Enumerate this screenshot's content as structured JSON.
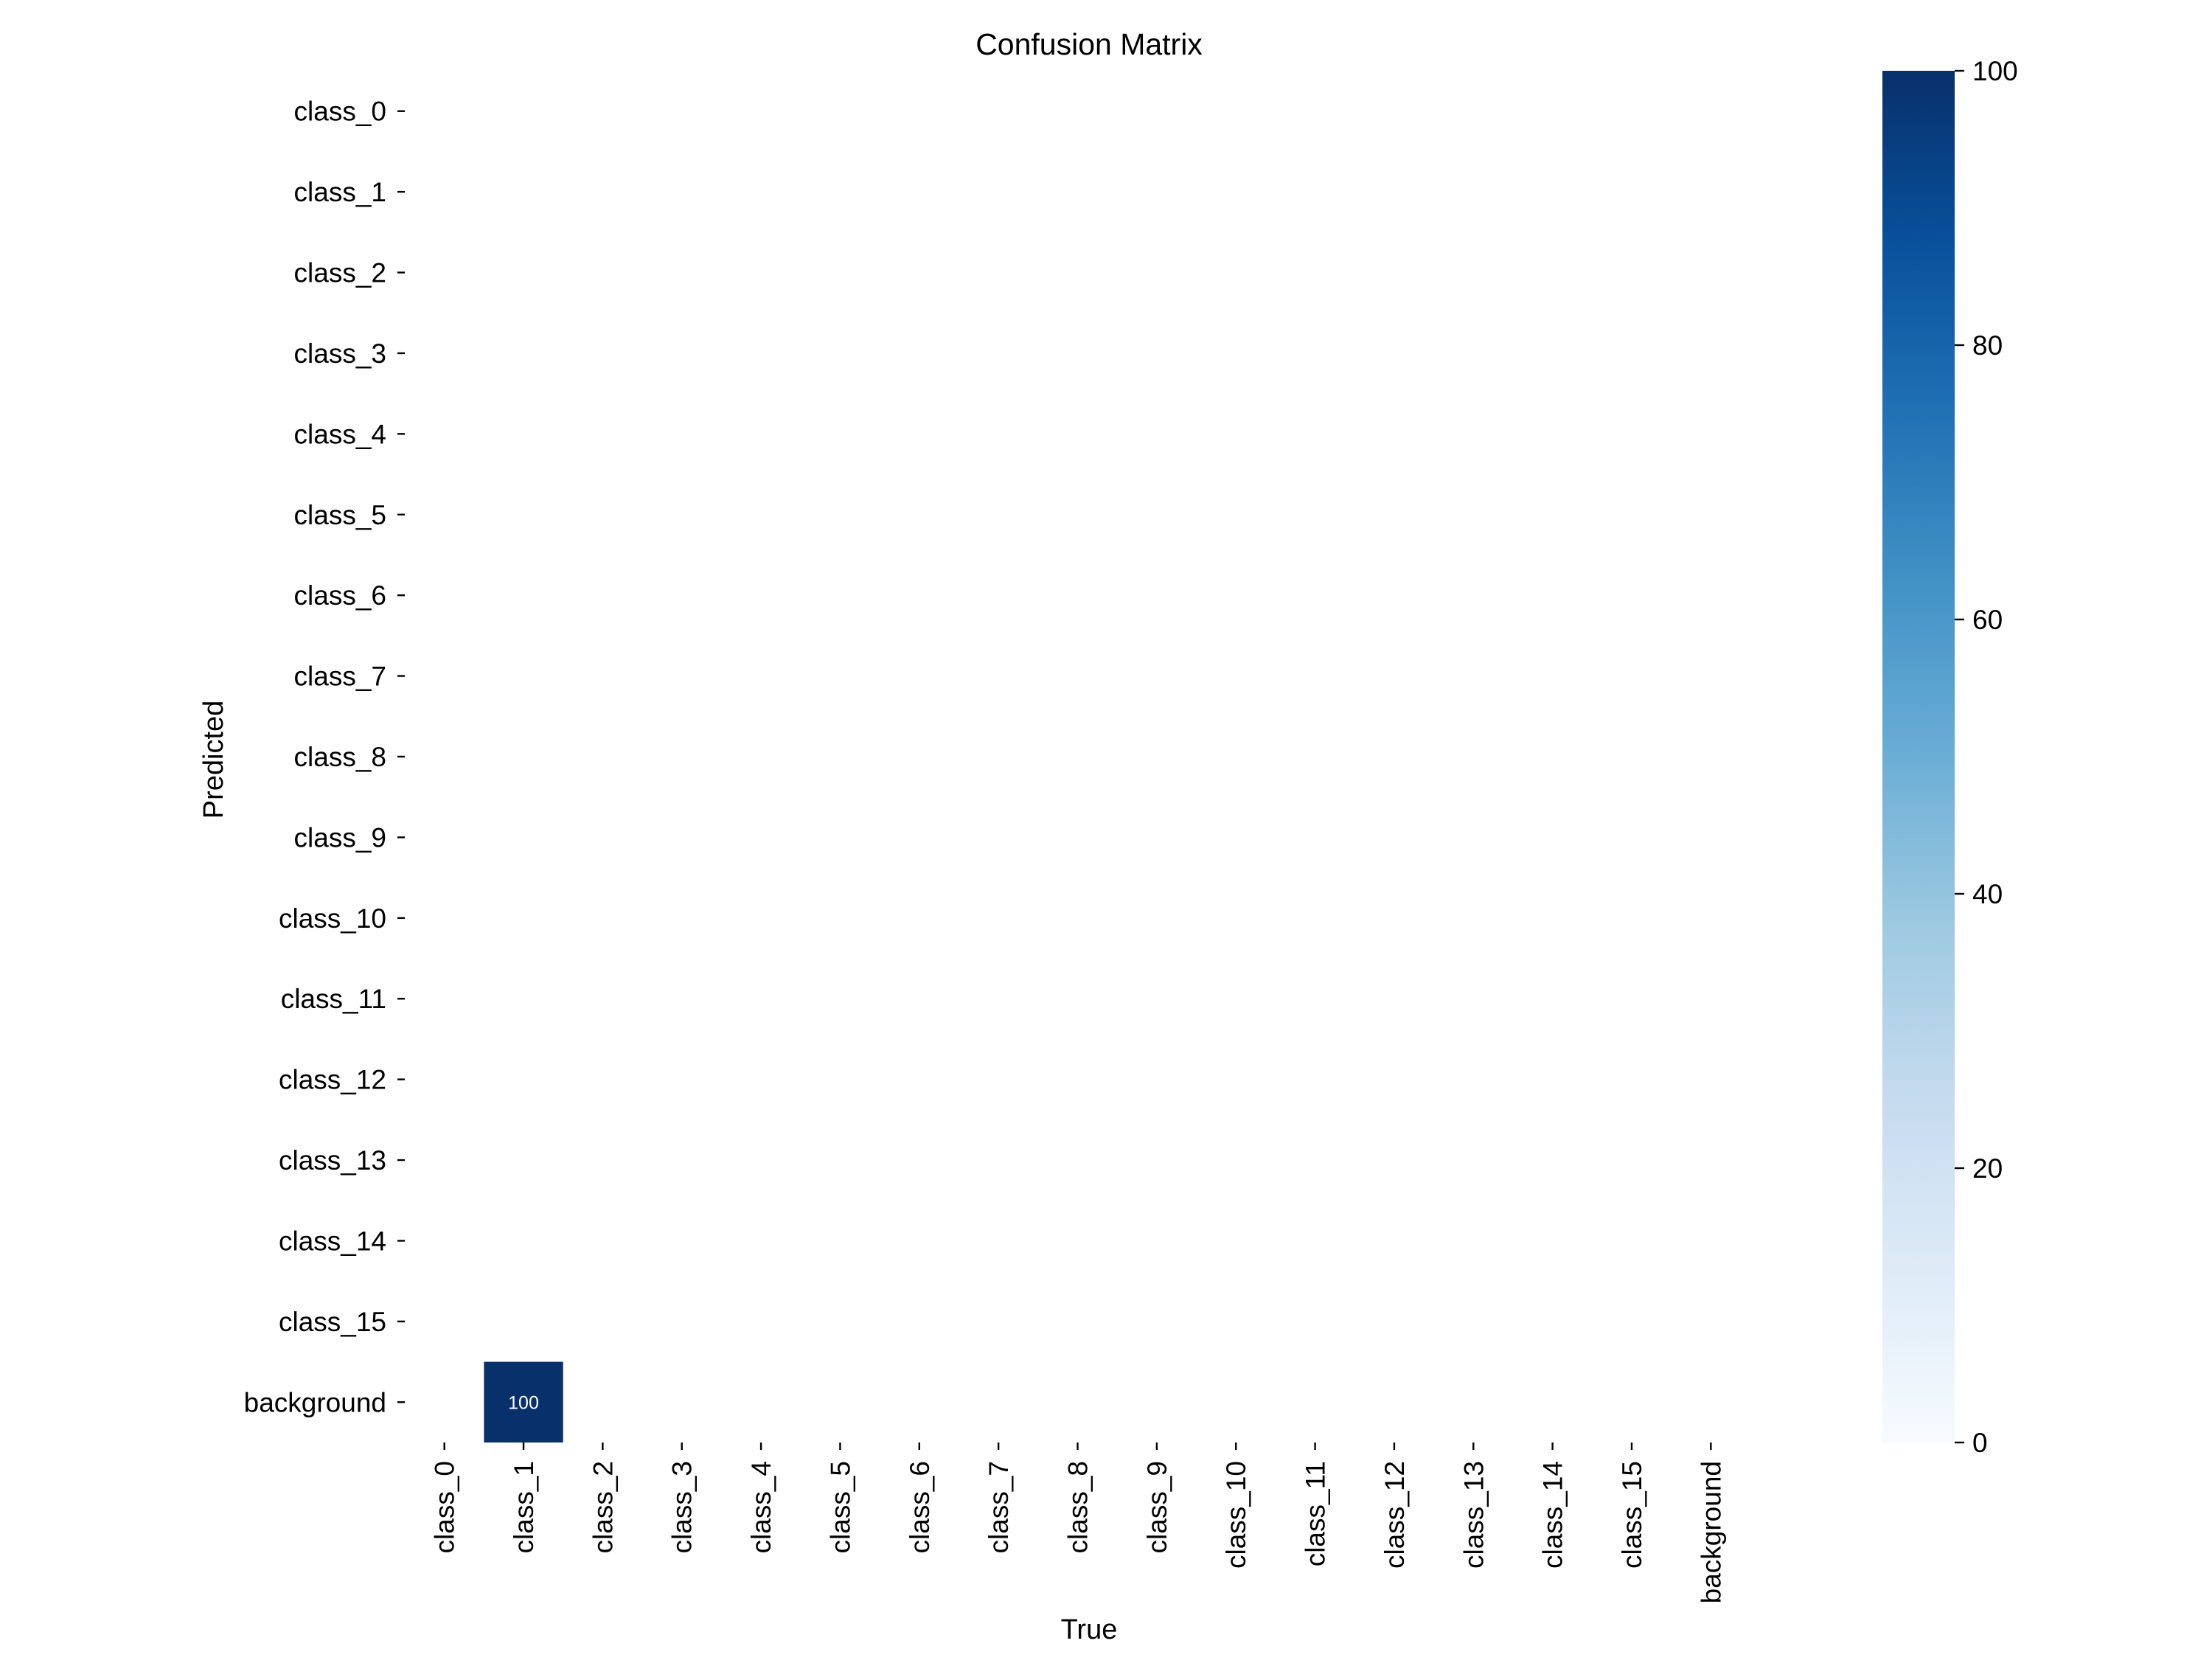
{
  "chart_data": {
    "type": "heatmap",
    "title": "Confusion Matrix",
    "xlabel": "True",
    "ylabel": "Predicted",
    "x_categories": [
      "class_0",
      "class_1",
      "class_2",
      "class_3",
      "class_4",
      "class_5",
      "class_6",
      "class_7",
      "class_8",
      "class_9",
      "class_10",
      "class_11",
      "class_12",
      "class_13",
      "class_14",
      "class_15",
      "background"
    ],
    "y_categories": [
      "class_0",
      "class_1",
      "class_2",
      "class_3",
      "class_4",
      "class_5",
      "class_6",
      "class_7",
      "class_8",
      "class_9",
      "class_10",
      "class_11",
      "class_12",
      "class_13",
      "class_14",
      "class_15",
      "background"
    ],
    "nonzero_cells": [
      {
        "true": "class_1",
        "predicted": "background",
        "value": 100,
        "label": "100"
      }
    ],
    "zero_cells_shown": "blank",
    "colormap": "Blues",
    "color_range": [
      0,
      100
    ],
    "colorbar_ticks": [
      "0",
      "20",
      "40",
      "60",
      "80",
      "100"
    ],
    "colors": {
      "min": "#f7fbff",
      "max": "#08306b"
    },
    "grid": false,
    "colorbar_position": "right"
  }
}
